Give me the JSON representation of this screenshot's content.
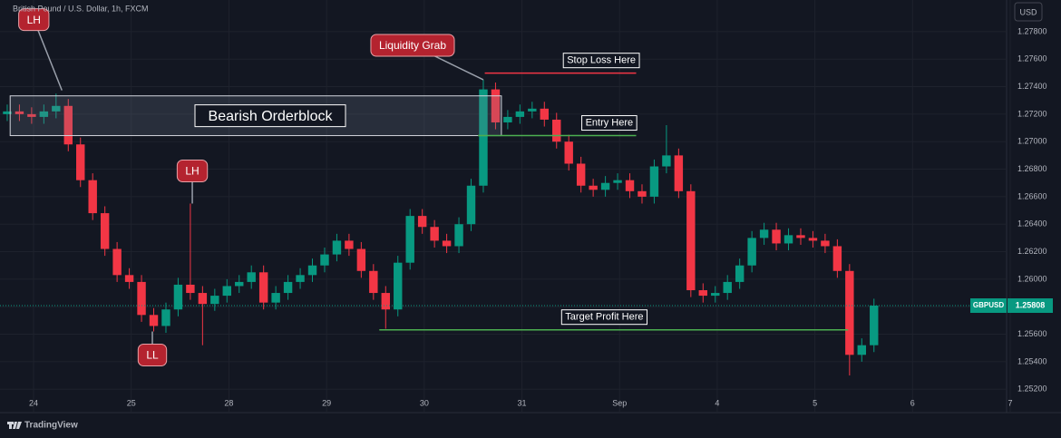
{
  "chart_data": {
    "type": "candlestick",
    "title": "British Pound / U.S. Dollar, 1h, FXCM",
    "currency": "USD",
    "up_color": "#089981",
    "down_color": "#f23645",
    "x": [
      -0.27,
      -0.145,
      -0.02,
      0.105,
      0.23,
      0.355,
      0.48,
      0.605,
      0.73,
      0.855,
      0.98,
      1.105,
      1.23,
      1.355,
      1.48,
      1.605,
      1.73,
      1.855,
      1.98,
      2.105,
      2.23,
      2.355,
      2.48,
      2.605,
      2.73,
      2.855,
      2.98,
      3.105,
      3.23,
      3.355,
      3.48,
      3.605,
      3.73,
      3.855,
      3.98,
      4.105,
      4.23,
      4.355,
      4.48,
      4.605,
      4.73,
      4.855,
      4.98,
      5.105,
      5.23,
      5.355,
      5.48,
      5.605,
      5.73,
      5.855,
      5.98,
      6.105,
      6.23,
      6.355,
      6.48,
      6.605,
      6.73,
      6.855,
      6.98,
      7.105,
      7.23,
      7.355,
      7.48,
      7.605,
      7.73,
      7.855,
      7.98,
      8.105,
      8.23,
      8.355,
      8.48,
      8.605
    ],
    "open": [
      1.272,
      1.2722,
      1.272,
      1.2718,
      1.2722,
      1.2726,
      1.2698,
      1.2672,
      1.2648,
      1.2622,
      1.2603,
      1.2598,
      1.2574,
      1.2566,
      1.2578,
      1.2596,
      1.259,
      1.2582,
      1.2588,
      1.2595,
      1.2598,
      1.2605,
      1.2583,
      1.259,
      1.2598,
      1.2603,
      1.261,
      1.2618,
      1.2628,
      1.2622,
      1.2606,
      1.259,
      1.2578,
      1.2612,
      1.2646,
      1.2638,
      1.2628,
      1.2624,
      1.264,
      1.2668,
      1.2738,
      1.2714,
      1.2718,
      1.2722,
      1.2724,
      1.2716,
      1.27,
      1.2684,
      1.2668,
      1.2665,
      1.267,
      1.2672,
      1.2664,
      1.266,
      1.2682,
      1.269,
      1.2664,
      1.2592,
      1.2588,
      1.259,
      1.2598,
      1.261,
      1.263,
      1.2636,
      1.2626,
      1.2632,
      1.263,
      1.2628,
      1.2624,
      1.2606,
      1.2545,
      1.2552
    ],
    "high": [
      1.2727,
      1.2727,
      1.2725,
      1.2727,
      1.2735,
      1.2731,
      1.2703,
      1.2677,
      1.2653,
      1.2627,
      1.2608,
      1.2603,
      1.2579,
      1.2583,
      1.2601,
      1.2655,
      1.2595,
      1.2593,
      1.26,
      1.2603,
      1.261,
      1.261,
      1.2595,
      1.2603,
      1.2608,
      1.2615,
      1.2623,
      1.2633,
      1.2633,
      1.2627,
      1.2611,
      1.2595,
      1.2617,
      1.2651,
      1.2651,
      1.2643,
      1.2633,
      1.2645,
      1.2673,
      1.2745,
      1.2743,
      1.2723,
      1.2727,
      1.2729,
      1.2729,
      1.2721,
      1.2705,
      1.2689,
      1.2673,
      1.2675,
      1.2677,
      1.2677,
      1.2669,
      1.2687,
      1.2712,
      1.2695,
      1.2669,
      1.2597,
      1.2595,
      1.2603,
      1.2615,
      1.2635,
      1.2641,
      1.2641,
      1.2637,
      1.2637,
      1.2635,
      1.2633,
      1.2629,
      1.2611,
      1.2557,
      1.25858
    ],
    "low": [
      1.2715,
      1.2715,
      1.2713,
      1.2713,
      1.2717,
      1.2693,
      1.2667,
      1.2643,
      1.2617,
      1.2598,
      1.2593,
      1.2569,
      1.2562,
      1.2561,
      1.2573,
      1.2585,
      1.2552,
      1.2577,
      1.2583,
      1.259,
      1.2593,
      1.2578,
      1.2578,
      1.2585,
      1.2593,
      1.2598,
      1.2605,
      1.2613,
      1.2617,
      1.2601,
      1.2585,
      1.2564,
      1.2573,
      1.2607,
      1.2633,
      1.2623,
      1.2619,
      1.2619,
      1.2635,
      1.2663,
      1.2709,
      1.2709,
      1.2713,
      1.2717,
      1.2711,
      1.2695,
      1.2679,
      1.2663,
      1.266,
      1.266,
      1.2665,
      1.2659,
      1.2655,
      1.2655,
      1.2677,
      1.2659,
      1.2587,
      1.2583,
      1.2583,
      1.2585,
      1.2593,
      1.2605,
      1.2625,
      1.2621,
      1.2621,
      1.2625,
      1.2623,
      1.2619,
      1.2601,
      1.253,
      1.254,
      1.2547
    ],
    "close": [
      1.2722,
      1.272,
      1.2718,
      1.2722,
      1.2726,
      1.2698,
      1.2672,
      1.2648,
      1.2622,
      1.2603,
      1.2598,
      1.2574,
      1.2566,
      1.2578,
      1.2596,
      1.259,
      1.2582,
      1.2588,
      1.2595,
      1.2598,
      1.2605,
      1.2583,
      1.259,
      1.2598,
      1.2603,
      1.261,
      1.2618,
      1.2628,
      1.2622,
      1.2606,
      1.259,
      1.2578,
      1.2612,
      1.2646,
      1.2638,
      1.2628,
      1.2624,
      1.264,
      1.2668,
      1.2738,
      1.2714,
      1.2718,
      1.2722,
      1.2724,
      1.2716,
      1.27,
      1.2684,
      1.2668,
      1.2665,
      1.267,
      1.2672,
      1.2664,
      1.266,
      1.2682,
      1.269,
      1.2664,
      1.2592,
      1.2588,
      1.259,
      1.2598,
      1.261,
      1.263,
      1.2636,
      1.2626,
      1.2632,
      1.263,
      1.2628,
      1.2624,
      1.2606,
      1.2545,
      1.2552,
      1.25808
    ],
    "xlim": [
      -0.344,
      9.963
    ],
    "ylim": [
      1.2503,
      1.2803
    ],
    "xticks": [
      {
        "value": 0,
        "label": "24"
      },
      {
        "value": 1,
        "label": "25"
      },
      {
        "value": 2,
        "label": "28"
      },
      {
        "value": 3,
        "label": "29"
      },
      {
        "value": 4,
        "label": "30"
      },
      {
        "value": 5,
        "label": "31"
      },
      {
        "value": 6,
        "label": "Sep"
      },
      {
        "value": 7,
        "label": "4"
      },
      {
        "value": 8,
        "label": "5"
      },
      {
        "value": 9,
        "label": "6"
      },
      {
        "value": 10,
        "label": "7"
      }
    ],
    "yticks": [
      {
        "value": 1.252,
        "label": "1.25200"
      },
      {
        "value": 1.254,
        "label": "1.25400"
      },
      {
        "value": 1.256,
        "label": "1.25600"
      },
      {
        "value": 1.258,
        "label": "1.25800"
      },
      {
        "value": 1.26,
        "label": "1.26000"
      },
      {
        "value": 1.262,
        "label": "1.26200"
      },
      {
        "value": 1.264,
        "label": "1.26400"
      },
      {
        "value": 1.266,
        "label": "1.26600"
      },
      {
        "value": 1.268,
        "label": "1.26800"
      },
      {
        "value": 1.27,
        "label": "1.27000"
      },
      {
        "value": 1.272,
        "label": "1.27200"
      },
      {
        "value": 1.274,
        "label": "1.27400"
      },
      {
        "value": 1.276,
        "label": "1.27600"
      },
      {
        "value": 1.278,
        "label": "1.27800"
      }
    ],
    "grid": true,
    "last_symbol": "GBPUSD",
    "last_price": 1.25808,
    "orderblock": {
      "label": "Bearish Orderblock",
      "x": [
        -0.24,
        4.79
      ],
      "y": [
        1.27044,
        1.27333
      ]
    },
    "levels": [
      {
        "label": "Stop Loss Here",
        "x": [
          4.62,
          6.17
        ],
        "y": 1.27498,
        "color": "#f23645"
      },
      {
        "label": "Entry Here",
        "x": [
          4.55,
          6.17
        ],
        "y": 1.27044,
        "color": "#4caf50"
      },
      {
        "label": "Target Profit Here",
        "x": [
          3.54,
          8.34
        ],
        "y": 1.25632,
        "color": "#4caf50"
      }
    ],
    "callouts": [
      {
        "label": "LH",
        "x": 0.29,
        "y": 1.27373
      },
      {
        "label": "LH",
        "x": 1.625,
        "y": 1.2655
      },
      {
        "label": "LL",
        "x": 1.216,
        "y": 1.2562
      },
      {
        "label": "Liquidity Grab",
        "x": 4.605,
        "y": 1.2745
      }
    ]
  },
  "branding": "TradingView"
}
